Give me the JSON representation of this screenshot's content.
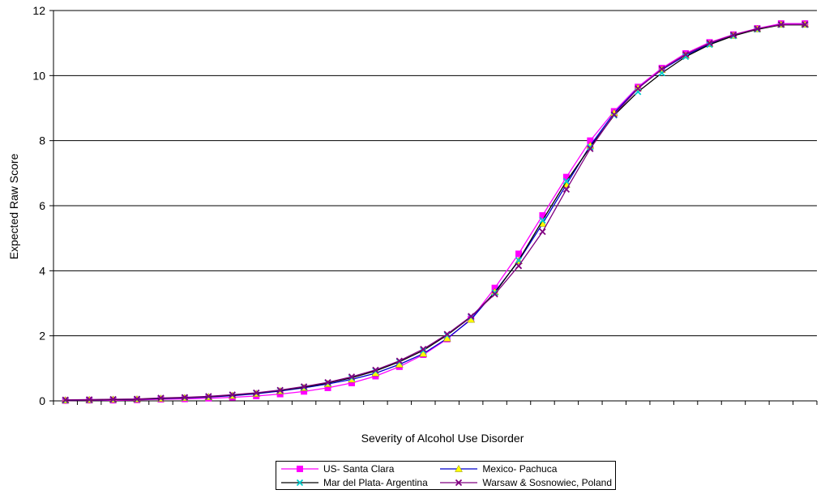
{
  "chart_data": {
    "type": "line",
    "title": "",
    "xlabel": "Severity of Alcohol Use Disorder",
    "ylabel": "Expected Raw Score",
    "ylim": [
      0,
      12
    ],
    "yticks": [
      "0",
      "2",
      "4",
      "6",
      "8",
      "10",
      "12"
    ],
    "grid": true,
    "legend_position": "bottom",
    "x": [
      1,
      2,
      3,
      4,
      5,
      6,
      7,
      8,
      9,
      10,
      11,
      12,
      13,
      14,
      15,
      16,
      17,
      18,
      19,
      20,
      21,
      22,
      23,
      24,
      25,
      26,
      27,
      28,
      29,
      30,
      31,
      32
    ],
    "series": [
      {
        "name": "US- Santa Clara",
        "color": "#ff00ff",
        "marker": "square",
        "values": [
          0.01,
          0.02,
          0.02,
          0.03,
          0.05,
          0.06,
          0.08,
          0.11,
          0.15,
          0.21,
          0.29,
          0.4,
          0.55,
          0.76,
          1.05,
          1.42,
          1.9,
          2.52,
          3.47,
          4.52,
          5.7,
          6.88,
          8.0,
          8.9,
          9.65,
          10.23,
          10.68,
          11.02,
          11.26,
          11.45,
          11.6,
          11.6
        ]
      },
      {
        "name": "Mexico- Pachuca",
        "color": "#0000cc",
        "marker": "triangle",
        "values": [
          0.02,
          0.03,
          0.04,
          0.05,
          0.07,
          0.09,
          0.12,
          0.16,
          0.22,
          0.3,
          0.4,
          0.52,
          0.66,
          0.85,
          1.12,
          1.45,
          1.92,
          2.5,
          3.35,
          4.3,
          5.45,
          6.65,
          7.85,
          8.85,
          9.62,
          10.18,
          10.62,
          10.97,
          11.23,
          11.43,
          11.57,
          11.57
        ]
      },
      {
        "name": "Mar del Plata- Argentina",
        "color": "#000000",
        "marker": "x",
        "values": [
          0.02,
          0.03,
          0.04,
          0.05,
          0.08,
          0.1,
          0.13,
          0.18,
          0.24,
          0.32,
          0.42,
          0.55,
          0.71,
          0.92,
          1.2,
          1.55,
          2.02,
          2.58,
          3.32,
          4.32,
          5.55,
          6.75,
          7.8,
          8.78,
          9.5,
          10.08,
          10.58,
          10.95,
          11.22,
          11.42,
          11.56,
          11.56
        ]
      },
      {
        "name": "Warsaw & Sosnowiec, Poland",
        "color": "#800080",
        "marker": "x",
        "values": [
          0.03,
          0.04,
          0.05,
          0.06,
          0.09,
          0.11,
          0.14,
          0.19,
          0.25,
          0.33,
          0.44,
          0.57,
          0.74,
          0.95,
          1.23,
          1.59,
          2.05,
          2.6,
          3.28,
          4.15,
          5.2,
          6.5,
          7.75,
          8.8,
          9.6,
          10.2,
          10.65,
          11.0,
          11.25,
          11.44,
          11.57,
          11.57
        ]
      }
    ]
  }
}
